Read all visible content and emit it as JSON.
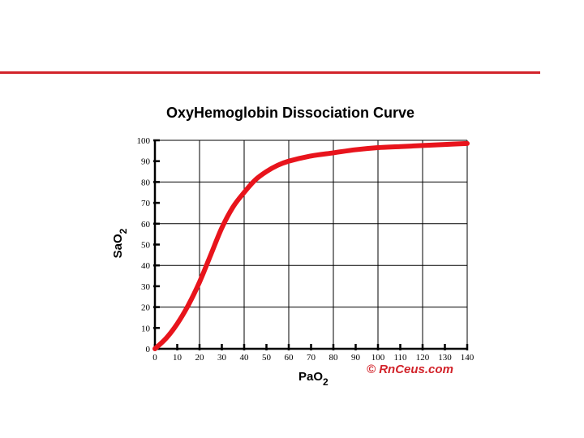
{
  "chart_data": {
    "type": "line",
    "title": "OxyHemoglobin Dissociation Curve",
    "xlabel": {
      "main": "PaO",
      "sub": "2"
    },
    "ylabel": {
      "main": "SaO",
      "sub": "2"
    },
    "xlim": [
      0,
      140
    ],
    "ylim": [
      0,
      100
    ],
    "xticks": [
      0,
      10,
      20,
      30,
      40,
      50,
      60,
      70,
      80,
      90,
      100,
      110,
      120,
      130,
      140
    ],
    "yticks": [
      0,
      10,
      20,
      30,
      40,
      50,
      60,
      70,
      80,
      90,
      100
    ],
    "grid": true,
    "x_gridlines": [
      0,
      20,
      40,
      60,
      80,
      100,
      120,
      140
    ],
    "y_gridlines": [
      0,
      20,
      40,
      60,
      80,
      100
    ],
    "series": [
      {
        "color": "#e8141c",
        "x": [
          0,
          5,
          10,
          15,
          20,
          25,
          30,
          35,
          40,
          45,
          50,
          55,
          60,
          70,
          80,
          90,
          100,
          110,
          120,
          130,
          140
        ],
        "y": [
          0,
          5,
          12,
          21,
          32,
          45,
          58,
          68,
          75,
          81,
          85,
          88,
          90,
          92.5,
          94,
          95.5,
          96.5,
          97,
          97.5,
          98,
          98.5
        ]
      }
    ],
    "credit": "© RnCeus.com"
  },
  "colors": {
    "rule": "#d2232a",
    "curve": "#e8141c",
    "credit": "#d2232a",
    "grid": "#000000"
  }
}
